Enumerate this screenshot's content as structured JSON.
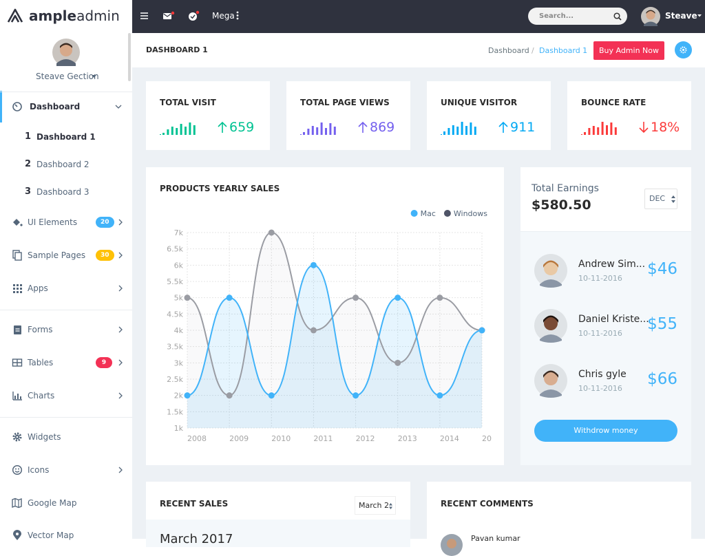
{
  "logo": {
    "strong": "ample",
    "light": "admin"
  },
  "sidebar": {
    "user": "Steave Gection",
    "menu": [
      {
        "label": "Dashboard",
        "arrow": "down",
        "active": true
      },
      {
        "number": "1",
        "label": "Dashboard 1",
        "active": true
      },
      {
        "number": "2",
        "label": "Dashboard 2"
      },
      {
        "number": "3",
        "label": "Dashboard 3"
      },
      {
        "label": "UI Elements",
        "badge": "20",
        "badge_color": "#41b3f9",
        "arrow": "right"
      },
      {
        "label": "Sample Pages",
        "badge": "30",
        "badge_color": "#fec107",
        "arrow": "right"
      },
      {
        "label": "Apps",
        "arrow": "right"
      },
      {
        "label": "Forms",
        "arrow": "right"
      },
      {
        "label": "Tables",
        "badge": "9",
        "badge_color": "#f33155",
        "arrow": "right"
      },
      {
        "label": "Charts",
        "arrow": "right"
      },
      {
        "label": "Widgets"
      },
      {
        "label": "Icons",
        "arrow": "right"
      },
      {
        "label": "Google Map"
      },
      {
        "label": "Vector Map"
      }
    ]
  },
  "topbar": {
    "mega": "Mega",
    "search": "Search...",
    "user": "Steave"
  },
  "header": {
    "title": "DASHBOARD 1",
    "breadcrumb": [
      "Dashboard",
      "/",
      "Dashboard 1"
    ],
    "button": "Buy Admin Now"
  },
  "stats": [
    {
      "title": "TOTAL VISIT",
      "value": "659",
      "trend": "up",
      "color": "#00c292",
      "bars": [
        3,
        8,
        12,
        10,
        16,
        12,
        18,
        14
      ]
    },
    {
      "title": "TOTAL PAGE VIEWS",
      "value": "869",
      "trend": "up",
      "color": "#7460ee",
      "bars": [
        4,
        9,
        13,
        11,
        18,
        10,
        17,
        12
      ]
    },
    {
      "title": "UNIQUE VISITOR",
      "value": "911",
      "trend": "up",
      "color": "#03a9f3",
      "bars": [
        5,
        10,
        14,
        12,
        19,
        13,
        18,
        12
      ]
    },
    {
      "title": "BOUNCE RATE",
      "value": "18%",
      "trend": "down",
      "color": "#fb3a3a",
      "bars": [
        4,
        10,
        13,
        11,
        19,
        14,
        18,
        11
      ]
    }
  ],
  "chart_data": {
    "type": "line",
    "title": "PRODUCTS YEARLY SALES",
    "categories": [
      "2008",
      "2009",
      "2010",
      "2011",
      "2012",
      "2013",
      "2014",
      "20"
    ],
    "series": [
      {
        "name": "Mac",
        "color": "#41b3f9",
        "values": [
          2000,
          5000,
          2000,
          6000,
          2000,
          5000,
          2000,
          4000
        ]
      },
      {
        "name": "Windows",
        "color": "#9a9ca3",
        "values": [
          5000,
          2000,
          7000,
          4000,
          5000,
          3000,
          5000,
          4000
        ]
      }
    ],
    "ylim": [
      1000,
      7000
    ],
    "yticks": [
      {
        "value": 1000,
        "label": "1k"
      },
      {
        "value": 1500,
        "label": "1.5k"
      },
      {
        "value": 2000,
        "label": "2k"
      },
      {
        "value": 2500,
        "label": "2.5k"
      },
      {
        "value": 3000,
        "label": "3k"
      },
      {
        "value": 3500,
        "label": "3.5k"
      },
      {
        "value": 4000,
        "label": "4k"
      },
      {
        "value": 4500,
        "label": "4.5k"
      },
      {
        "value": 5000,
        "label": "5k"
      },
      {
        "value": 5500,
        "label": "5.5k"
      },
      {
        "value": 6000,
        "label": "6k"
      },
      {
        "value": 6500,
        "label": "6.5k"
      },
      {
        "value": 7000,
        "label": "7k"
      }
    ],
    "grid": true,
    "legend": "top-right"
  },
  "earnings": {
    "title": "Total Earnings",
    "amount": "$580.50",
    "month": "DEC",
    "people": [
      {
        "name": "Andrew Sim...",
        "date": "10-11-2016",
        "amount": "$46"
      },
      {
        "name": "Daniel Kriste...",
        "date": "10-11-2016",
        "amount": "$55"
      },
      {
        "name": "Chris gyle",
        "date": "10-11-2016",
        "amount": "$66"
      }
    ],
    "button": "Withdrow money"
  },
  "recent_sales": {
    "title": "RECENT SALES",
    "month": "March 2",
    "subtitle": "March 2017"
  },
  "recent_comments": {
    "title": "RECENT COMMENTS",
    "first": "Pavan kumar"
  }
}
